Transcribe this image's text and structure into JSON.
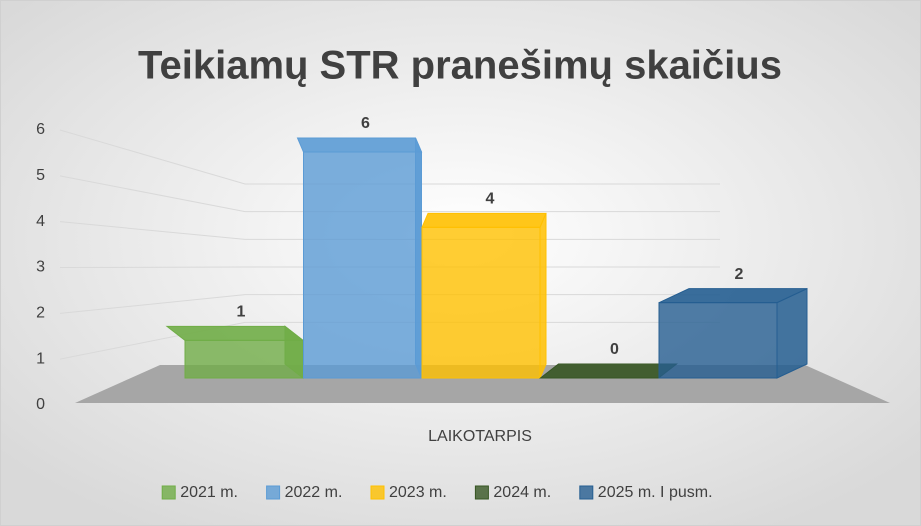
{
  "chart_data": {
    "type": "bar3d",
    "title": "Teikiamų STR pranešimų skaičius",
    "categories": [
      "LAIKOTARPIS"
    ],
    "series": [
      {
        "name": "2021 m.",
        "color": "#70ad47",
        "values": [
          1
        ]
      },
      {
        "name": "2022 m.",
        "color": "#5b9bd5",
        "values": [
          6
        ]
      },
      {
        "name": "2023 m.",
        "color": "#ffc000",
        "values": [
          4
        ]
      },
      {
        "name": "2024 m.",
        "color": "#375623",
        "values": [
          0
        ]
      },
      {
        "name": "2025 m. I pusm.",
        "color": "#255e91",
        "values": [
          2
        ]
      }
    ],
    "ylim": [
      0,
      6
    ],
    "yticks": [
      0,
      1,
      2,
      3,
      4,
      5,
      6
    ],
    "grid": true,
    "legend": "bottom"
  }
}
